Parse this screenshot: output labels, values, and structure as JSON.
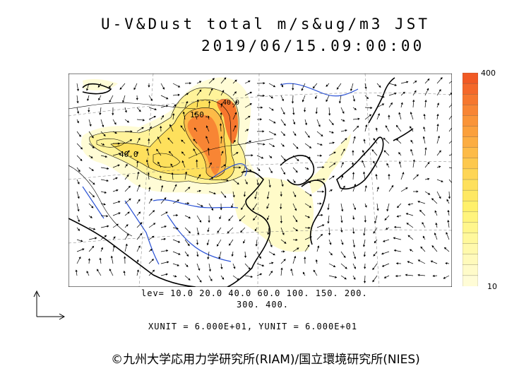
{
  "title_line1": "U-V&Dust total m/s&ug/m3 JST",
  "title_line2": "2019/06/15.09:00:00",
  "map": {
    "contour_labels": [
      "150.",
      "40.0",
      "40.0"
    ]
  },
  "colorbar": {
    "max_label": "400",
    "min_label": "10",
    "colors": [
      "#f15a24",
      "#f4682a",
      "#f6772e",
      "#f88534",
      "#fa9438",
      "#fba03c",
      "#fcad42",
      "#fdbb48",
      "#fdc84e",
      "#fed555",
      "#fee05c",
      "#fee863",
      "#fff06a",
      "#fff47c",
      "#fff68c",
      "#fff89c",
      "#fff9ac",
      "#fffabb",
      "#fffbc9",
      "#fffcd6"
    ]
  },
  "levels_line1": "lev= 10.0 20.0 40.0 60.0 100. 150. 200.",
  "levels_line2": "300. 400.",
  "units_line": "XUNIT = 6.000E+01, YUNIT = 6.000E+01",
  "copyright": "©九州大学応用力学研究所(RIAM)/国立環境研究所(NIES)"
}
